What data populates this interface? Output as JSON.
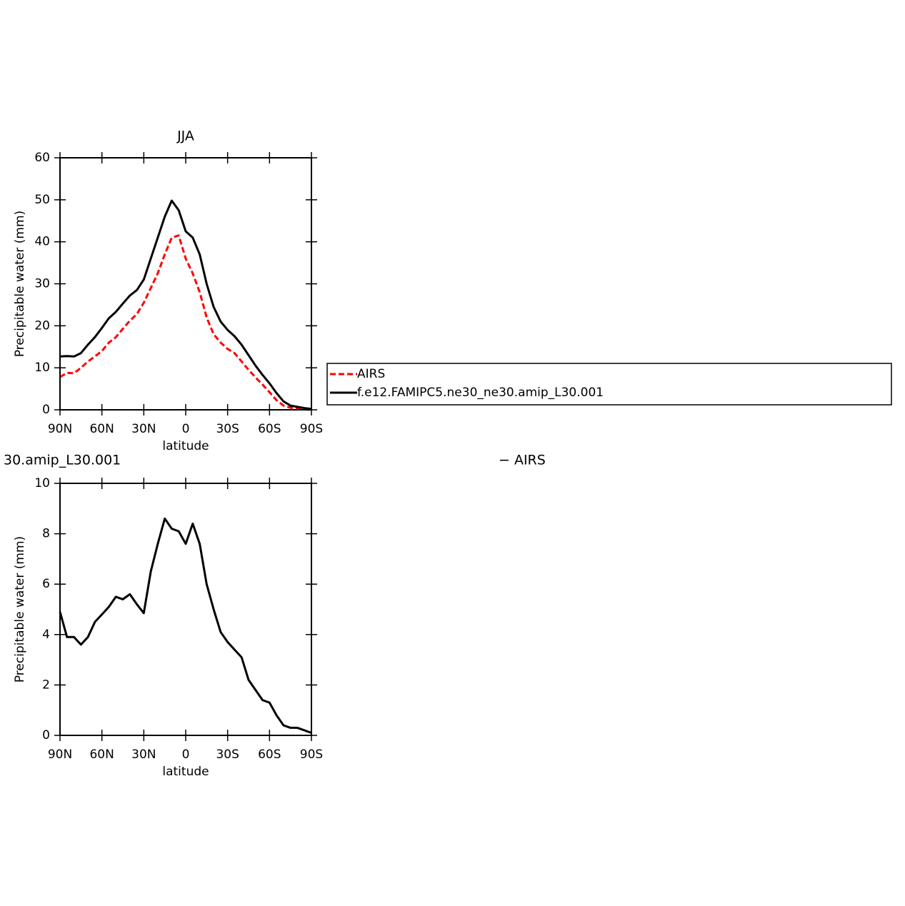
{
  "chart_data": [
    {
      "type": "line",
      "title": "JJA",
      "x_label": "latitude",
      "y_label": "Precipitable water (mm)",
      "x": [
        90,
        85,
        80,
        75,
        70,
        65,
        60,
        55,
        50,
        45,
        40,
        35,
        30,
        25,
        20,
        15,
        10,
        5,
        0,
        -5,
        -10,
        -15,
        -20,
        -25,
        -30,
        -35,
        -40,
        -45,
        -50,
        -55,
        -60,
        -65,
        -70,
        -75,
        -80,
        -85,
        -90
      ],
      "xlim": [
        90,
        -90
      ],
      "xticks": [
        {
          "value": 90,
          "label": "90N"
        },
        {
          "value": 60,
          "label": "60N"
        },
        {
          "value": 30,
          "label": "30N"
        },
        0,
        {
          "value": -30,
          "label": "30S"
        },
        {
          "value": -60,
          "label": "60S"
        },
        {
          "value": -90,
          "label": "90S"
        }
      ],
      "ylim": [
        0,
        60
      ],
      "yticks": [
        0,
        10,
        20,
        30,
        40,
        50,
        60
      ],
      "series": [
        {
          "name": "AIRS",
          "color": "#ff0000",
          "dash": true,
          "values": [
            7.8,
            8.8,
            8.7,
            10,
            11.5,
            12.7,
            14,
            16,
            17.3,
            19.3,
            21.2,
            22.8,
            25.5,
            29,
            32.5,
            37,
            41,
            41.5,
            36,
            32.5,
            28,
            22,
            18,
            16,
            14.5,
            13.5,
            11.5,
            9.5,
            7.7,
            6,
            4.2,
            2.3,
            1,
            0.5,
            0.3,
            0.1,
            0
          ]
        },
        {
          "name": "f.e12.FAMIPC5.ne30_ne30.amip_L30.001",
          "color": "#000000",
          "dash": false,
          "values": [
            12.7,
            12.8,
            12.7,
            13.5,
            15.5,
            17.3,
            19.5,
            21.8,
            23.3,
            25.3,
            27.2,
            28.5,
            31,
            36,
            41,
            46,
            49.8,
            47.5,
            42.5,
            41,
            37,
            30,
            24.5,
            21,
            19,
            17.5,
            15.5,
            13,
            10.5,
            8.3,
            6.3,
            4,
            2,
            1,
            0.7,
            0.4,
            0.2
          ]
        }
      ]
    },
    {
      "type": "line",
      "title": "30.amip_L30.001",
      "title_right": "− AIRS",
      "x_label": "latitude",
      "y_label": "Precipitable water (mm)",
      "x": [
        90,
        85,
        80,
        75,
        70,
        65,
        60,
        55,
        50,
        45,
        40,
        35,
        30,
        25,
        20,
        15,
        10,
        5,
        0,
        -5,
        -10,
        -15,
        -20,
        -25,
        -30,
        -35,
        -40,
        -45,
        -50,
        -55,
        -60,
        -65,
        -70,
        -75,
        -80,
        -85,
        -90
      ],
      "xlim": [
        90,
        -90
      ],
      "xticks": [
        {
          "value": 90,
          "label": "90N"
        },
        {
          "value": 60,
          "label": "60N"
        },
        {
          "value": 30,
          "label": "30N"
        },
        0,
        {
          "value": -30,
          "label": "30S"
        },
        {
          "value": -60,
          "label": "60S"
        },
        {
          "value": -90,
          "label": "90S"
        }
      ],
      "ylim": [
        0,
        10
      ],
      "yticks": [
        0,
        2,
        4,
        6,
        8,
        10
      ],
      "series": [
        {
          "color": "#000000",
          "dash": false,
          "values": [
            4.9,
            3.9,
            3.9,
            3.6,
            3.9,
            4.5,
            4.8,
            5.1,
            5.5,
            5.4,
            5.6,
            5.2,
            4.85,
            6.5,
            7.6,
            8.6,
            8.2,
            8.1,
            7.6,
            8.4,
            7.6,
            6,
            5,
            4.1,
            3.7,
            3.4,
            3.1,
            2.2,
            1.8,
            1.4,
            1.3,
            0.8,
            0.4,
            0.3,
            0.3,
            0.2,
            0.1
          ]
        }
      ]
    }
  ]
}
